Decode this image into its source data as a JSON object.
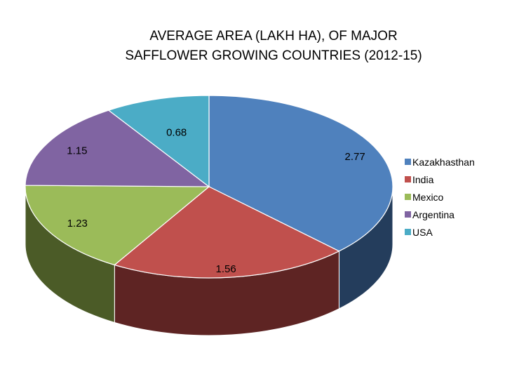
{
  "chart_data": {
    "type": "pie",
    "title_lines": [
      "AVERAGE AREA (LAKH HA), OF MAJOR",
      "SAFFLOWER GROWING COUNTRIES (2012-15)"
    ],
    "categories": [
      "Kazakhasthan",
      "India",
      "Mexico",
      "Argentina",
      "USA"
    ],
    "values": [
      2.77,
      1.56,
      1.23,
      1.15,
      0.68
    ],
    "data_labels": [
      "2.77",
      "1.56",
      "1.23",
      "1.15",
      "0.68"
    ],
    "colors": {
      "top": [
        "#4F81BD",
        "#C0504D",
        "#9BBB59",
        "#8064A2",
        "#4BACC6"
      ],
      "side": [
        "#243D5C",
        "#5E2423",
        "#4B5B27",
        "#3E2F52",
        "#22566A"
      ]
    },
    "legend_position": "right",
    "style": "3d"
  }
}
